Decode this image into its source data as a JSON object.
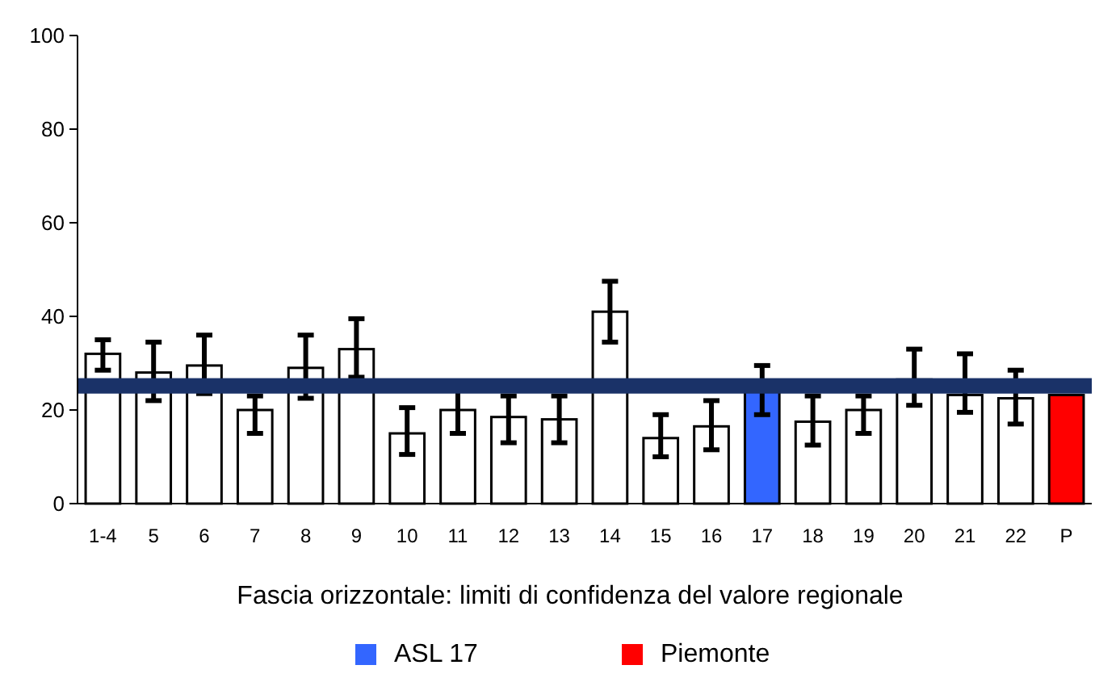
{
  "chart_data": {
    "type": "bar",
    "categories": [
      "1-4",
      "5",
      "6",
      "7",
      "8",
      "9",
      "10",
      "11",
      "12",
      "13",
      "14",
      "15",
      "16",
      "17",
      "18",
      "19",
      "20",
      "21",
      "22",
      "P"
    ],
    "series": [
      {
        "color": "#ffffff",
        "values": [
          32,
          28,
          29.5,
          20,
          29,
          33,
          15,
          20,
          18.5,
          18,
          41,
          14,
          16.5,
          null,
          17.5,
          20,
          26.5,
          23.2,
          22.5,
          null
        ],
        "errors": [
          [
            28.5,
            35
          ],
          [
            22,
            34.5
          ],
          [
            23.5,
            36
          ],
          [
            15,
            23
          ],
          [
            22.5,
            36
          ],
          [
            27,
            39.5
          ],
          [
            10.5,
            20.5
          ],
          [
            15,
            26.2
          ],
          [
            13,
            23
          ],
          [
            13,
            23
          ],
          [
            34.5,
            47.5
          ],
          [
            10,
            19
          ],
          [
            11.5,
            22
          ],
          null,
          [
            12.5,
            23
          ],
          [
            15,
            23
          ],
          [
            21,
            33
          ],
          [
            19.5,
            32
          ],
          [
            17,
            28.5
          ],
          null
        ]
      },
      {
        "name": "ASL 17",
        "color": "#3366ff",
        "values": [
          null,
          null,
          null,
          null,
          null,
          null,
          null,
          null,
          null,
          null,
          null,
          null,
          null,
          24,
          null,
          null,
          null,
          null,
          null,
          null
        ],
        "errors": [
          null,
          null,
          null,
          null,
          null,
          null,
          null,
          null,
          null,
          null,
          null,
          null,
          null,
          [
            19,
            29.5
          ],
          null,
          null,
          null,
          null,
          null,
          null
        ]
      },
      {
        "name": "Piemonte",
        "color": "#ff0000",
        "values": [
          null,
          null,
          null,
          null,
          null,
          null,
          null,
          null,
          null,
          null,
          null,
          null,
          null,
          null,
          null,
          null,
          null,
          null,
          null,
          23.2
        ]
      }
    ],
    "ylim": [
      0,
      100
    ],
    "yticks": [
      0,
      20,
      40,
      60,
      80,
      100
    ],
    "grid": false,
    "bands": [
      {
        "axis": "y",
        "from": 23.5,
        "to": 26.8,
        "color": "#1a3268"
      }
    ],
    "annotations": [
      "Fascia orizzontale: limiti di confidenza del valore regionale"
    ],
    "legend": "bottom"
  }
}
